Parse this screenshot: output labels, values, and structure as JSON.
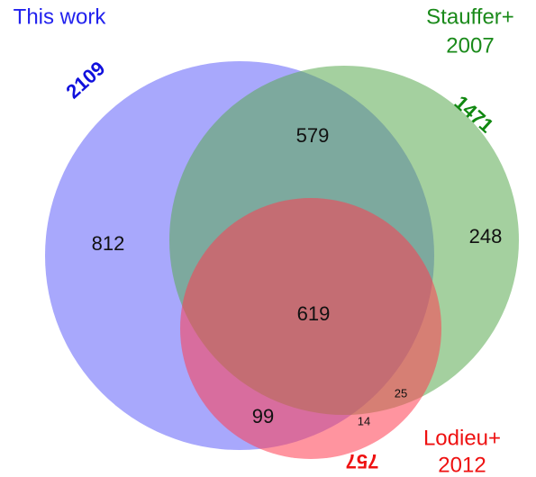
{
  "sets": [
    {
      "name": [
        "This work"
      ],
      "total": "2109"
    },
    {
      "name": [
        "Stauffer+",
        "2007"
      ],
      "total": "1471"
    },
    {
      "name": [
        "Lodieu+",
        "2012"
      ],
      "total": "757"
    }
  ],
  "regions": {
    "this_only": "812",
    "this_stauffer": "579",
    "stauffer_only": "248",
    "all_three": "619",
    "this_lodieu": "99",
    "stauffer_lodieu": "25",
    "lodieu_only": "14"
  }
}
